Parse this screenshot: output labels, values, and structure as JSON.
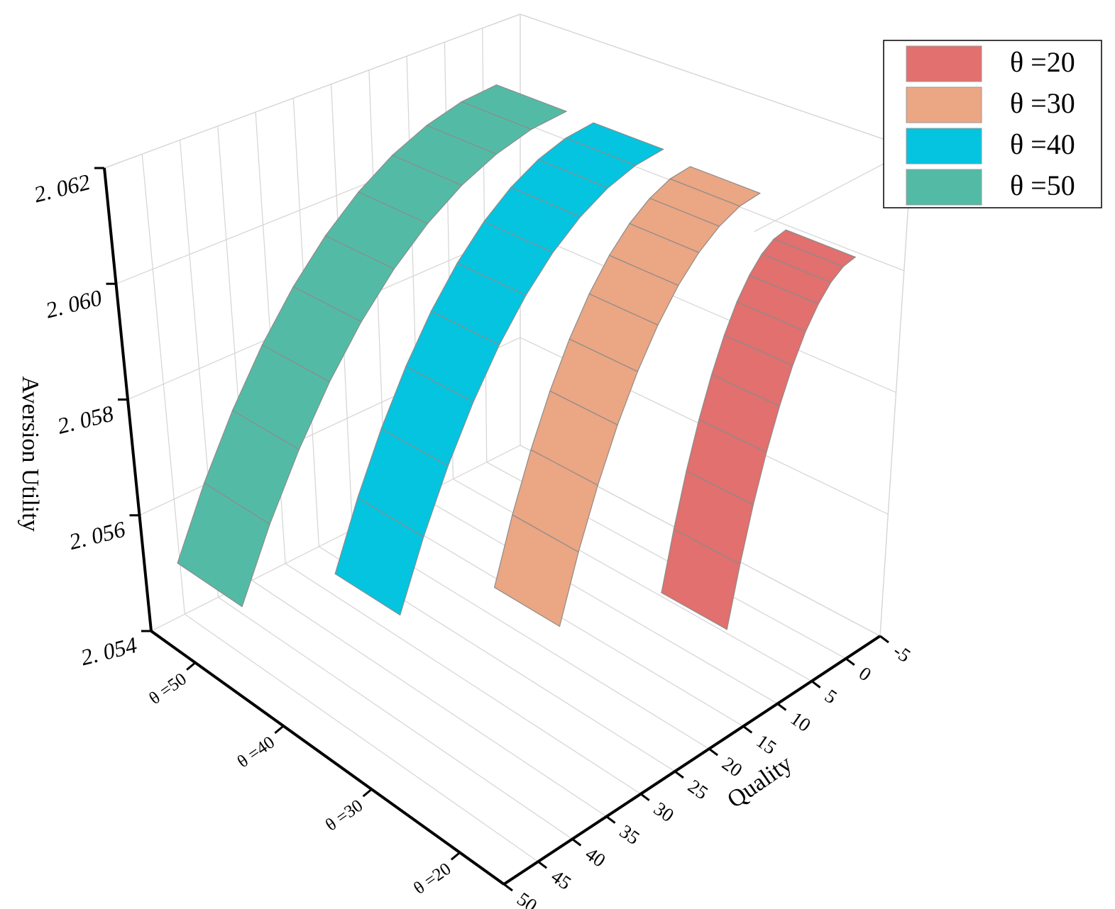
{
  "chart_data": {
    "type": "ribbon3d",
    "categories": [
      "θ =50",
      "θ =40",
      "θ =30",
      "θ =20"
    ],
    "series": [
      {
        "name": "θ =20",
        "color": "#e1706e",
        "x": [
          0,
          1.6,
          3.2,
          4.8,
          6.4,
          8,
          9.6,
          11.2,
          12.8,
          14.4,
          16
        ],
        "values": [
          2.06047,
          2.06042,
          2.06027,
          2.06002,
          2.05968,
          2.05923,
          2.05868,
          2.05804,
          2.0573,
          2.05645,
          2.05551
        ]
      },
      {
        "name": "θ =30",
        "color": "#eba683",
        "x": [
          0,
          2.7,
          5.4,
          8.1,
          10.8,
          13.5,
          16.2,
          18.9,
          21.6,
          24.3,
          27
        ],
        "values": [
          2.06091,
          2.06086,
          2.06069,
          2.06042,
          2.06004,
          2.05955,
          2.05895,
          2.05824,
          2.05742,
          2.0565,
          2.05546
        ]
      },
      {
        "name": "θ =40",
        "color": "#05c4e0",
        "x": [
          0,
          3.7,
          7.4,
          11.1,
          14.8,
          18.5,
          22.2,
          25.9,
          29.6,
          33.3,
          37
        ],
        "values": [
          2.06103,
          2.06097,
          2.0608,
          2.06052,
          2.06013,
          2.05962,
          2.059,
          2.05826,
          2.05741,
          2.05645,
          2.05538
        ]
      },
      {
        "name": "θ =50",
        "color": "#53bba5",
        "x": [
          0,
          4.7,
          9.4,
          14.1,
          18.8,
          23.5,
          28.2,
          32.9,
          37.6,
          42.3,
          47
        ],
        "values": [
          2.06105,
          2.06099,
          2.06081,
          2.06052,
          2.06011,
          2.05958,
          2.05893,
          2.05816,
          2.05727,
          2.05627,
          2.05515
        ]
      }
    ],
    "ylabel": "Quality",
    "zlabel": "Aversion Utility",
    "ylim": [
      -5,
      50
    ],
    "yticks": [
      -5,
      0,
      5,
      10,
      15,
      20,
      25,
      30,
      35,
      40,
      45,
      50
    ],
    "zlim": [
      2.054,
      2.062
    ],
    "zticks": [
      {
        "value": 2.054,
        "label": "2. 054"
      },
      {
        "value": 2.056,
        "label": "2. 056"
      },
      {
        "value": 2.058,
        "label": "2. 058"
      },
      {
        "value": 2.06,
        "label": "2. 060"
      },
      {
        "value": 2.062,
        "label": "2. 062"
      }
    ],
    "grid": true,
    "legend": "top-right"
  }
}
